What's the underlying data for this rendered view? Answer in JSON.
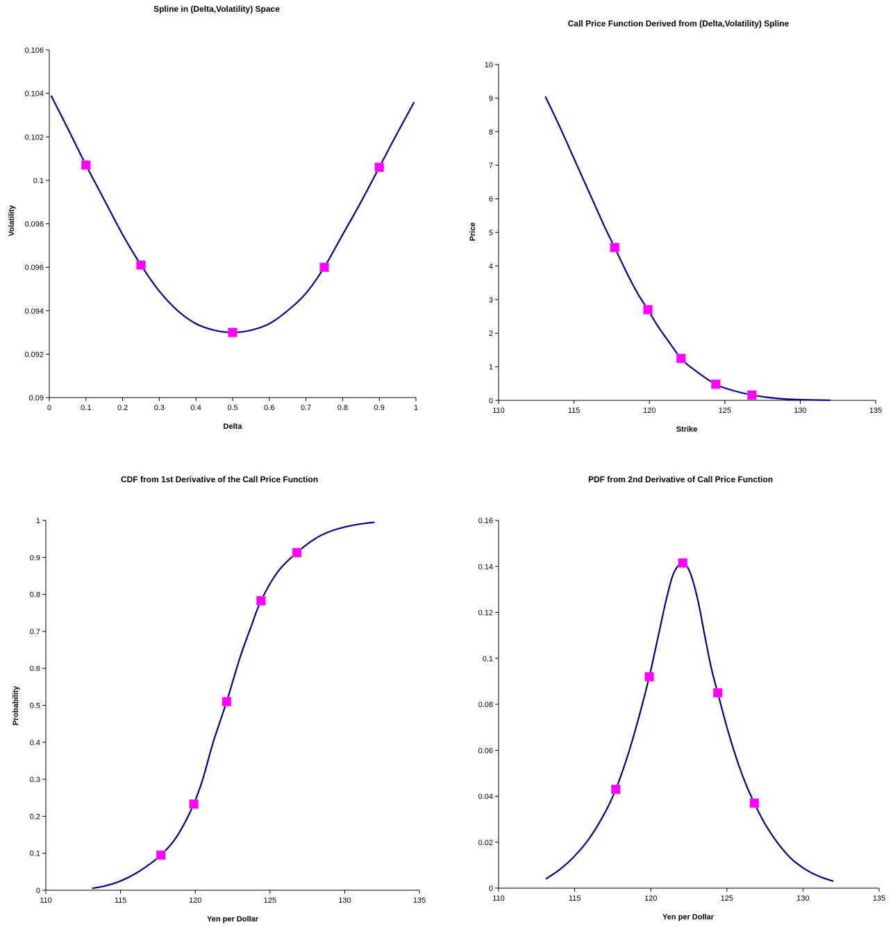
{
  "chart_data": [
    {
      "id": "vol",
      "type": "line",
      "title": "Spline in (Delta,Volatility) Space",
      "xlabel": "Delta",
      "ylabel": "Volatility",
      "xlim": [
        0,
        1
      ],
      "ylim": [
        0.09,
        0.106
      ],
      "xticks": [
        0,
        0.1,
        0.2,
        0.3,
        0.4,
        0.5,
        0.6,
        0.7,
        0.8,
        0.9,
        1
      ],
      "yticks": [
        0.09,
        0.092,
        0.094,
        0.096,
        0.098,
        0.1,
        0.102,
        0.104,
        0.106
      ],
      "xtick_labels": [
        "0",
        "0.1",
        "0.2",
        "0.3",
        "0.4",
        "0.5",
        "0.6",
        "0.7",
        "0.8",
        "0.9",
        "1"
      ],
      "ytick_labels": [
        "0.09",
        "0.092",
        "0.094",
        "0.096",
        "0.098",
        "0.1",
        "0.102",
        "0.104",
        "0.106"
      ],
      "curve": {
        "x": [
          0.005,
          0.05,
          0.1,
          0.15,
          0.2,
          0.25,
          0.3,
          0.35,
          0.4,
          0.45,
          0.5,
          0.55,
          0.6,
          0.65,
          0.7,
          0.75,
          0.8,
          0.85,
          0.9,
          0.95,
          0.995
        ],
        "y": [
          0.1039,
          0.1024,
          0.1007,
          0.0991,
          0.0975,
          0.0961,
          0.0949,
          0.094,
          0.0934,
          0.0931,
          0.093,
          0.0931,
          0.0934,
          0.094,
          0.0948,
          0.096,
          0.0975,
          0.099,
          0.1006,
          0.1022,
          0.1036
        ]
      },
      "points": {
        "x": [
          0.1,
          0.25,
          0.5,
          0.75,
          0.9
        ],
        "y": [
          0.1007,
          0.0961,
          0.093,
          0.096,
          0.1006
        ]
      }
    },
    {
      "id": "price",
      "type": "line",
      "title": "Call Price Function Derived from (Delta,Volatility) Spline",
      "xlabel": "Strike",
      "ylabel": "Price",
      "xlim": [
        110,
        135
      ],
      "ylim": [
        0,
        10
      ],
      "xticks": [
        110,
        115,
        120,
        125,
        130,
        135
      ],
      "yticks": [
        0,
        1,
        2,
        3,
        4,
        5,
        6,
        7,
        8,
        9,
        10
      ],
      "xtick_labels": [
        "110",
        "115",
        "120",
        "125",
        "130",
        "135"
      ],
      "ytick_labels": [
        "0",
        "1",
        "2",
        "3",
        "4",
        "5",
        "6",
        "7",
        "8",
        "9",
        "10"
      ],
      "curve": {
        "x": [
          113.1,
          114,
          115,
          116,
          117,
          117.7,
          118.5,
          119.2,
          119.9,
          120.5,
          121.2,
          122.1,
          123,
          124.4,
          125.5,
          126.8,
          128,
          129,
          130,
          131,
          132
        ],
        "y": [
          9.05,
          8.2,
          7.2,
          6.2,
          5.2,
          4.55,
          3.8,
          3.2,
          2.7,
          2.25,
          1.8,
          1.25,
          0.9,
          0.48,
          0.3,
          0.16,
          0.08,
          0.04,
          0.02,
          0.01,
          0.005
        ]
      },
      "points": {
        "x": [
          117.7,
          119.9,
          122.1,
          124.4,
          126.8
        ],
        "y": [
          4.55,
          2.7,
          1.25,
          0.48,
          0.16
        ]
      }
    },
    {
      "id": "cdf",
      "type": "line",
      "title": "CDF from 1st Derivative of the Call Price Function",
      "xlabel": "Yen per Dollar",
      "ylabel": "Probability",
      "xlim": [
        110,
        135
      ],
      "ylim": [
        0,
        1
      ],
      "xticks": [
        110,
        115,
        120,
        125,
        130,
        135
      ],
      "yticks": [
        0,
        0.1,
        0.2,
        0.3,
        0.4,
        0.5,
        0.6,
        0.7,
        0.8,
        0.9,
        1
      ],
      "xtick_labels": [
        "110",
        "115",
        "120",
        "125",
        "130",
        "135"
      ],
      "ytick_labels": [
        "0",
        "0.1",
        "0.2",
        "0.3",
        "0.4",
        "0.5",
        "0.6",
        "0.7",
        "0.8",
        "0.9",
        "1"
      ],
      "curve": {
        "x": [
          113.1,
          114,
          115,
          116,
          117,
          117.7,
          118.5,
          119.2,
          119.9,
          120.5,
          121.2,
          122.1,
          123,
          123.8,
          124.4,
          125.5,
          126.8,
          128,
          129,
          130,
          131,
          132
        ],
        "y": [
          0.005,
          0.012,
          0.025,
          0.045,
          0.072,
          0.095,
          0.13,
          0.175,
          0.233,
          0.3,
          0.4,
          0.51,
          0.63,
          0.72,
          0.783,
          0.86,
          0.913,
          0.95,
          0.97,
          0.982,
          0.99,
          0.995
        ]
      },
      "points": {
        "x": [
          117.7,
          119.9,
          122.1,
          124.4,
          126.8
        ],
        "y": [
          0.095,
          0.233,
          0.51,
          0.783,
          0.913
        ]
      }
    },
    {
      "id": "pdf",
      "type": "line",
      "title": "PDF from 2nd Derivative of Call Price Function",
      "xlabel": "Yen per Dollar",
      "ylabel": "",
      "xlim": [
        110,
        135
      ],
      "ylim": [
        0,
        0.16
      ],
      "xticks": [
        110,
        115,
        120,
        125,
        130,
        135
      ],
      "yticks": [
        0,
        0.02,
        0.04,
        0.06,
        0.08,
        0.1,
        0.12,
        0.14,
        0.16
      ],
      "xtick_labels": [
        "110",
        "115",
        "120",
        "125",
        "130",
        "135"
      ],
      "ytick_labels": [
        "0",
        "0.02",
        "0.04",
        "0.06",
        "0.08",
        "0.1",
        "0.12",
        "0.14",
        "0.16"
      ],
      "curve": {
        "x": [
          113.1,
          114,
          115,
          116,
          117,
          117.7,
          118.5,
          119.2,
          119.9,
          120.5,
          121,
          121.5,
          122.1,
          122.6,
          123.1,
          123.6,
          124,
          124.4,
          125,
          125.6,
          126.2,
          126.8,
          127.5,
          128.3,
          129.2,
          130.2,
          131.1,
          132
        ],
        "y": [
          0.004,
          0.008,
          0.014,
          0.022,
          0.033,
          0.043,
          0.058,
          0.074,
          0.092,
          0.11,
          0.125,
          0.137,
          0.1415,
          0.137,
          0.125,
          0.108,
          0.095,
          0.085,
          0.07,
          0.057,
          0.046,
          0.037,
          0.028,
          0.02,
          0.013,
          0.008,
          0.005,
          0.003
        ]
      },
      "points": {
        "x": [
          117.7,
          119.9,
          122.1,
          124.4,
          126.8
        ],
        "y": [
          0.043,
          0.092,
          0.1415,
          0.085,
          0.037
        ]
      }
    }
  ]
}
